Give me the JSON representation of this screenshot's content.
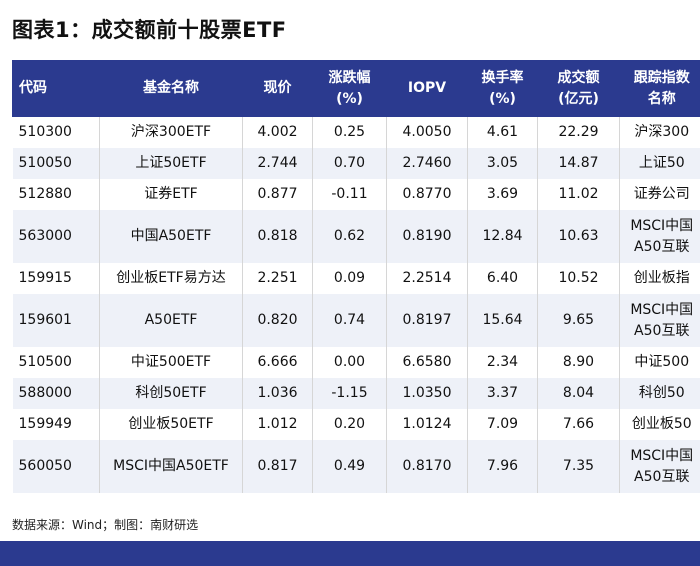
{
  "title": "图表1：成交额前十股票ETF",
  "table": {
    "headers": [
      [
        "代码"
      ],
      [
        "基金名称"
      ],
      [
        "现价"
      ],
      [
        "涨跌幅",
        "(%)"
      ],
      [
        "IOPV"
      ],
      [
        "换手率",
        "(%)"
      ],
      [
        "成交额",
        "(亿元)"
      ],
      [
        "跟踪指数",
        "名称"
      ]
    ],
    "rows": [
      {
        "code": "510300",
        "name": "沪深300ETF",
        "price": "4.002",
        "change": "0.25",
        "iopv": "4.0050",
        "turnover": "4.61",
        "volume": "22.29",
        "index": [
          "沪深300"
        ]
      },
      {
        "code": "510050",
        "name": "上证50ETF",
        "price": "2.744",
        "change": "0.70",
        "iopv": "2.7460",
        "turnover": "3.05",
        "volume": "14.87",
        "index": [
          "上证50"
        ]
      },
      {
        "code": "512880",
        "name": "证券ETF",
        "price": "0.877",
        "change": "-0.11",
        "iopv": "0.8770",
        "turnover": "3.69",
        "volume": "11.02",
        "index": [
          "证券公司"
        ]
      },
      {
        "code": "563000",
        "name": "中国A50ETF",
        "price": "0.818",
        "change": "0.62",
        "iopv": "0.8190",
        "turnover": "12.84",
        "volume": "10.63",
        "index": [
          "MSCI中国",
          "A50互联"
        ]
      },
      {
        "code": "159915",
        "name": "创业板ETF易方达",
        "price": "2.251",
        "change": "0.09",
        "iopv": "2.2514",
        "turnover": "6.40",
        "volume": "10.52",
        "index": [
          "创业板指"
        ]
      },
      {
        "code": "159601",
        "name": "A50ETF",
        "price": "0.820",
        "change": "0.74",
        "iopv": "0.8197",
        "turnover": "15.64",
        "volume": "9.65",
        "index": [
          "MSCI中国",
          "A50互联"
        ]
      },
      {
        "code": "510500",
        "name": "中证500ETF",
        "price": "6.666",
        "change": "0.00",
        "iopv": "6.6580",
        "turnover": "2.34",
        "volume": "8.90",
        "index": [
          "中证500"
        ]
      },
      {
        "code": "588000",
        "name": "科创50ETF",
        "price": "1.036",
        "change": "-1.15",
        "iopv": "1.0350",
        "turnover": "3.37",
        "volume": "8.04",
        "index": [
          "科创50"
        ]
      },
      {
        "code": "159949",
        "name": "创业板50ETF",
        "price": "1.012",
        "change": "0.20",
        "iopv": "1.0124",
        "turnover": "7.09",
        "volume": "7.66",
        "index": [
          "创业板50"
        ]
      },
      {
        "code": "560050",
        "name": "MSCI中国A50ETF",
        "price": "0.817",
        "change": "0.49",
        "iopv": "0.8170",
        "turnover": "7.96",
        "volume": "7.35",
        "index": [
          "MSCI中国",
          "A50互联"
        ]
      }
    ]
  },
  "source": "数据来源：Wind；制图：南财研选",
  "colors": {
    "header_bg": "#2b3a8f",
    "row_shade": "#eef1f8"
  }
}
